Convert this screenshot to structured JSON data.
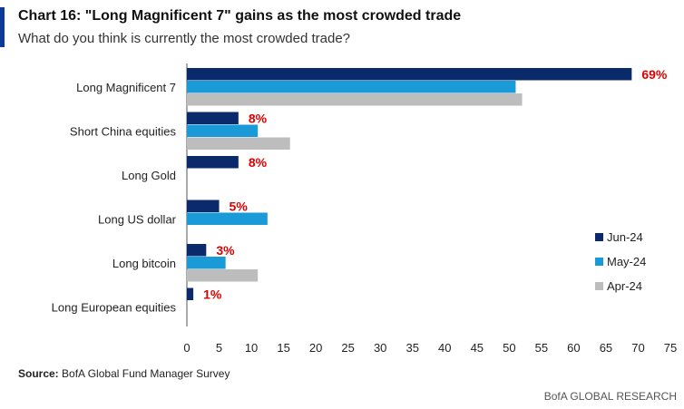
{
  "header": {
    "title": "Chart 16: \"Long Magnificent 7\" gains as the most crowded trade",
    "subtitle": "What do you think is currently the most crowded trade?"
  },
  "footer": {
    "source_label": "Source:",
    "source_text": "BofA Global Fund Manager Survey",
    "brand": "BofA GLOBAL RESEARCH"
  },
  "chart_data": {
    "type": "bar",
    "orientation": "horizontal",
    "categories": [
      "Long Magnificent 7",
      "Short China equities",
      "Long Gold",
      "Long US dollar",
      "Long bitcoin",
      "Long European equities"
    ],
    "series": [
      {
        "name": "Jun-24",
        "color": "#0b2a6b",
        "values": [
          69,
          8,
          8,
          5,
          3,
          1
        ]
      },
      {
        "name": "May-24",
        "color": "#1a9ad6",
        "values": [
          51,
          11,
          0,
          12.5,
          6,
          0
        ]
      },
      {
        "name": "Apr-24",
        "color": "#bdbdbd",
        "values": [
          52,
          16,
          0,
          0,
          11,
          0
        ]
      }
    ],
    "data_labels": [
      "69%",
      "8%",
      "8%",
      "5%",
      "3%",
      "1%"
    ],
    "data_label_color": "#e00000",
    "xticks": [
      "0",
      "5",
      "10",
      "15",
      "20",
      "25",
      "30",
      "35",
      "40",
      "45",
      "50",
      "55",
      "60",
      "65",
      "70",
      "75"
    ],
    "xlim": [
      0,
      75
    ],
    "grid": false,
    "legend_position": "right"
  }
}
